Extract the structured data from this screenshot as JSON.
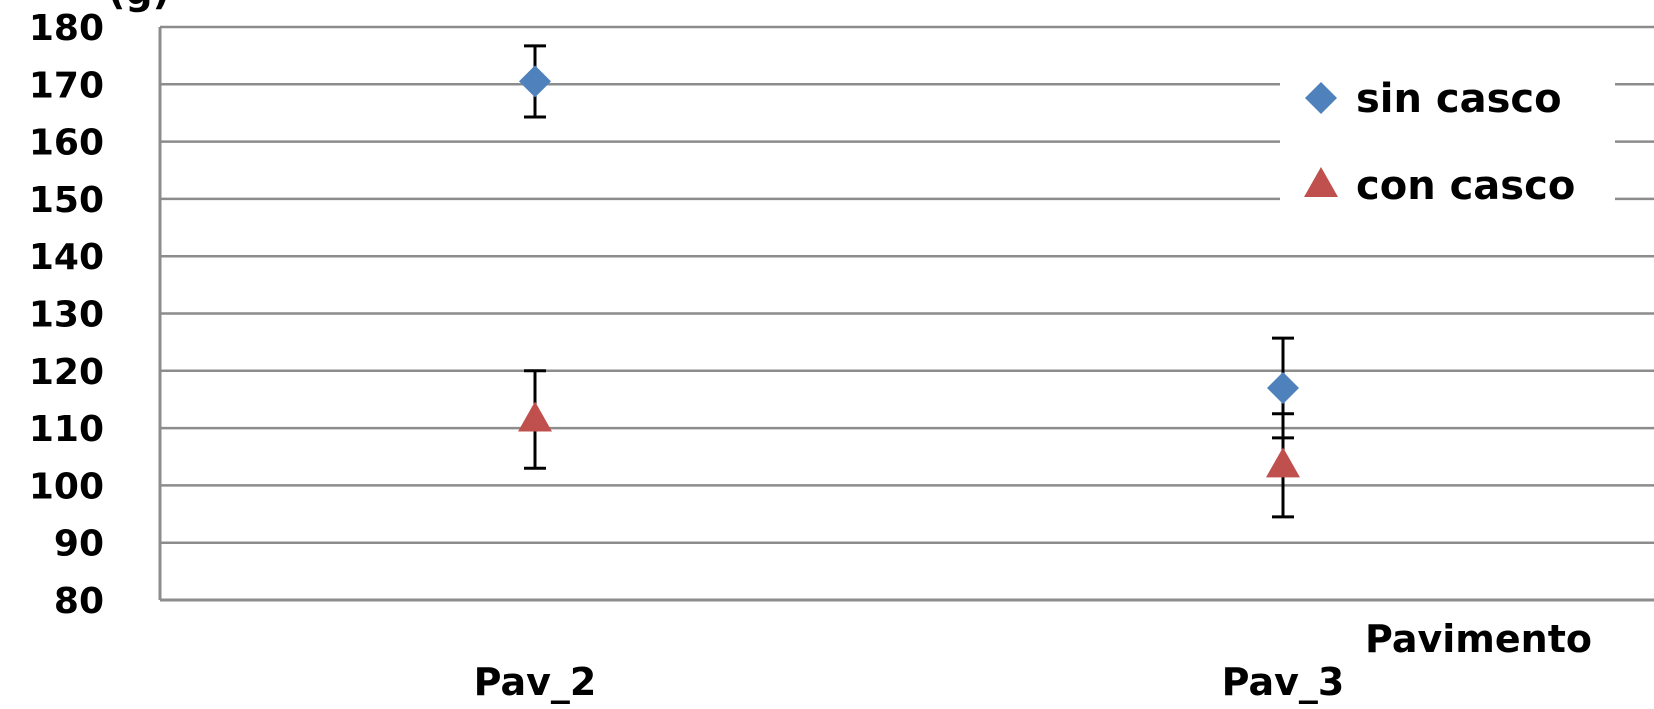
{
  "chart_data": {
    "type": "scatter",
    "categories": [
      "Pav_2",
      "Pav_3"
    ],
    "xlabel": "Pavimento",
    "ylabel_partial": "(g)",
    "ylim": [
      80,
      180
    ],
    "yticks": [
      80,
      90,
      100,
      110,
      120,
      130,
      140,
      150,
      160,
      170,
      180
    ],
    "grid": true,
    "legend_position": "top-right",
    "series": [
      {
        "name": "sin casco",
        "marker": "diamond",
        "color": "#4F81BD",
        "values": [
          170.5,
          117.0
        ],
        "error": [
          6.2,
          8.7
        ]
      },
      {
        "name": "con casco",
        "marker": "triangle",
        "color": "#C0504D",
        "values": [
          111.5,
          103.5
        ],
        "error": [
          8.5,
          9.0
        ]
      }
    ]
  }
}
